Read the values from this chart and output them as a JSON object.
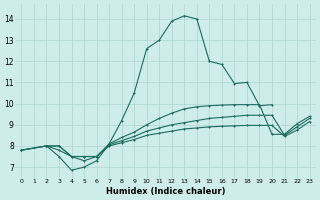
{
  "xlabel": "Humidex (Indice chaleur)",
  "background_color": "#ceecea",
  "grid_color": "#aed4d0",
  "line_color": "#1a6b5e",
  "xlim": [
    -0.5,
    23.5
  ],
  "ylim": [
    6.5,
    14.7
  ],
  "xticks": [
    0,
    1,
    2,
    3,
    4,
    5,
    6,
    7,
    8,
    9,
    10,
    11,
    12,
    13,
    14,
    15,
    16,
    17,
    18,
    19,
    20,
    21,
    22,
    23
  ],
  "yticks": [
    7,
    8,
    9,
    10,
    11,
    12,
    13,
    14
  ],
  "line_peak_x": [
    2,
    3,
    4,
    5,
    6,
    7,
    8,
    9,
    10,
    11,
    12,
    13,
    14,
    15,
    16,
    17,
    18,
    19,
    20
  ],
  "line_peak_y": [
    8.0,
    7.5,
    6.85,
    7.0,
    7.3,
    8.1,
    9.2,
    10.5,
    12.6,
    13.0,
    13.9,
    14.15,
    14.0,
    12.0,
    11.85,
    10.95,
    11.0,
    9.9,
    9.95
  ],
  "line_mid_x": [
    0,
    2,
    3,
    4,
    5,
    6,
    7,
    8,
    9,
    10,
    11,
    12,
    13,
    14,
    15,
    16,
    17,
    18,
    19,
    20,
    21,
    22,
    23
  ],
  "line_mid_y": [
    7.8,
    8.0,
    7.8,
    7.5,
    7.3,
    7.5,
    8.1,
    8.4,
    8.65,
    9.0,
    9.3,
    9.55,
    9.75,
    9.85,
    9.9,
    9.93,
    9.95,
    9.95,
    9.95,
    8.55,
    8.55,
    9.05,
    9.4
  ],
  "line_flat1_x": [
    0,
    2,
    3,
    4,
    5,
    6,
    7,
    8,
    9,
    10,
    11,
    12,
    13,
    14,
    15,
    16,
    17,
    18,
    19,
    20,
    21,
    22,
    23
  ],
  "line_flat1_y": [
    7.8,
    8.0,
    8.0,
    7.5,
    7.5,
    7.5,
    8.05,
    8.25,
    8.45,
    8.7,
    8.85,
    9.0,
    9.1,
    9.2,
    9.3,
    9.35,
    9.4,
    9.45,
    9.45,
    9.45,
    8.5,
    8.9,
    9.3
  ],
  "line_flat2_x": [
    0,
    2,
    3,
    4,
    5,
    6,
    7,
    8,
    9,
    10,
    11,
    12,
    13,
    14,
    15,
    16,
    17,
    18,
    19,
    20,
    21,
    22,
    23
  ],
  "line_flat2_y": [
    7.8,
    8.0,
    8.0,
    7.5,
    7.5,
    7.5,
    8.0,
    8.15,
    8.3,
    8.5,
    8.6,
    8.7,
    8.8,
    8.85,
    8.9,
    8.93,
    8.95,
    8.97,
    8.97,
    8.97,
    8.45,
    8.75,
    9.15
  ]
}
